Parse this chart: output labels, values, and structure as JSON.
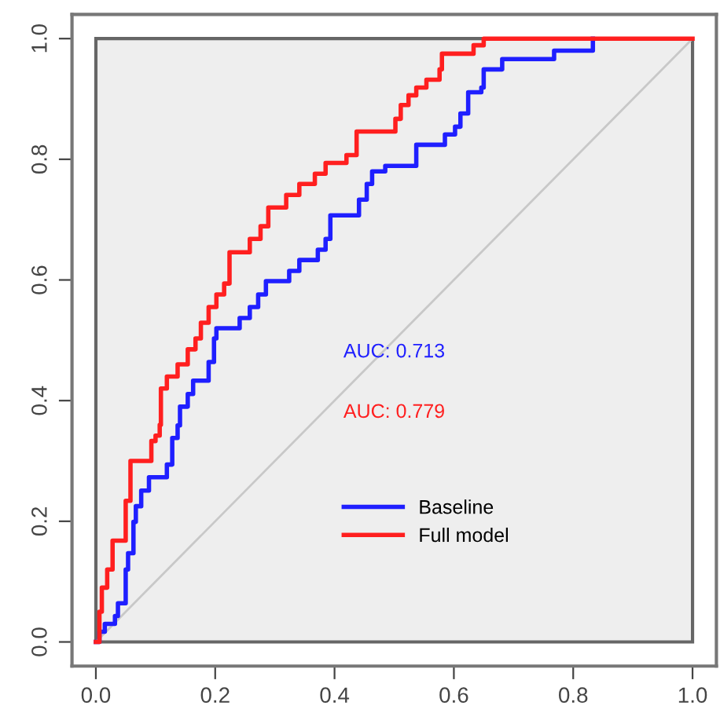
{
  "chart_data": {
    "type": "step",
    "xlim": [
      -0.04,
      1.04
    ],
    "ylim": [
      -0.04,
      1.04
    ],
    "xticks": [
      {
        "value": 0,
        "label": "0.0"
      },
      0.2,
      0.4,
      0.6,
      0.8,
      {
        "value": 1,
        "label": "1.0"
      }
    ],
    "yticks": [
      {
        "value": 0,
        "label": "0.0"
      },
      0.2,
      0.4,
      0.6,
      0.8,
      {
        "value": 1,
        "label": "1.0"
      }
    ],
    "grid": false,
    "legend": "bottom",
    "annotations": [
      "AUC: 0.713",
      "AUC: 0.779"
    ],
    "series": [
      {
        "type": "line",
        "color": "#c8c8c8",
        "x": [
          0,
          1
        ],
        "values": [
          0,
          1
        ]
      },
      {
        "name": "Baseline",
        "color": "#1f1fff",
        "x": [
          0,
          0.006,
          0.015,
          0.032,
          0.037,
          0.05,
          0.054,
          0.063,
          0.067,
          0.076,
          0.089,
          0.119,
          0.128,
          0.137,
          0.141,
          0.154,
          0.163,
          0.189,
          0.198,
          0.202,
          0.241,
          0.258,
          0.272,
          0.285,
          0.324,
          0.341,
          0.372,
          0.385,
          0.393,
          0.441,
          0.454,
          0.463,
          0.485,
          0.537,
          0.585,
          0.602,
          0.611,
          0.624,
          0.646,
          0.65,
          0.681,
          0.768,
          0.833
        ],
        "values": [
          0,
          0.017,
          0.03,
          0.043,
          0.064,
          0.12,
          0.147,
          0.199,
          0.225,
          0.251,
          0.273,
          0.294,
          0.338,
          0.359,
          0.39,
          0.411,
          0.433,
          0.464,
          0.503,
          0.52,
          0.537,
          0.555,
          0.576,
          0.598,
          0.615,
          0.633,
          0.65,
          0.668,
          0.707,
          0.733,
          0.759,
          0.78,
          0.789,
          0.824,
          0.841,
          0.854,
          0.876,
          0.911,
          0.919,
          0.949,
          0.966,
          0.98,
          1.0
        ]
      },
      {
        "name": "Full model",
        "color": "#ff1f1f",
        "x": [
          0,
          0.006,
          0.01,
          0.019,
          0.028,
          0.05,
          0.058,
          0.093,
          0.1,
          0.107,
          0.109,
          0.119,
          0.137,
          0.154,
          0.167,
          0.176,
          0.189,
          0.202,
          0.215,
          0.224,
          0.258,
          0.276,
          0.289,
          0.319,
          0.341,
          0.367,
          0.385,
          0.42,
          0.437,
          0.502,
          0.511,
          0.524,
          0.537,
          0.554,
          0.576,
          0.58,
          0.633,
          0.65,
          1
        ],
        "values": [
          0,
          0.05,
          0.09,
          0.12,
          0.168,
          0.234,
          0.3,
          0.333,
          0.342,
          0.36,
          0.42,
          0.44,
          0.46,
          0.485,
          0.503,
          0.529,
          0.555,
          0.576,
          0.594,
          0.646,
          0.668,
          0.689,
          0.72,
          0.741,
          0.759,
          0.776,
          0.794,
          0.807,
          0.846,
          0.867,
          0.89,
          0.906,
          0.919,
          0.932,
          0.949,
          0.975,
          0.989,
          1.0,
          1.0
        ]
      }
    ]
  }
}
